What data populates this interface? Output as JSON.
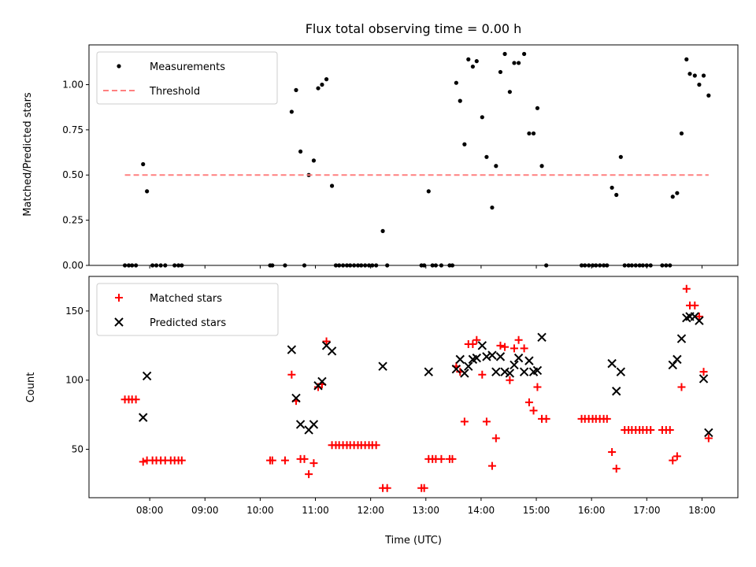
{
  "chart_data": [
    {
      "type": "scatter",
      "title": "Flux total observing time = 0.00 h",
      "xlabel": "",
      "ylabel": "Matched/Predicted stars",
      "xlim": [
        6.9,
        18.65
      ],
      "ylim": [
        0,
        1.22
      ],
      "yticks": [
        "0.00",
        "0.25",
        "0.50",
        "0.75",
        "1.00"
      ],
      "legend": "top-left",
      "series": [
        {
          "name": "Measurements",
          "marker": "dot",
          "color": "#000000",
          "points": [
            [
              7.55,
              0
            ],
            [
              7.62,
              0
            ],
            [
              7.68,
              0
            ],
            [
              7.75,
              0
            ],
            [
              7.88,
              0.56
            ],
            [
              7.95,
              0.41
            ],
            [
              8.05,
              0
            ],
            [
              8.12,
              0
            ],
            [
              8.2,
              0
            ],
            [
              8.28,
              0
            ],
            [
              8.45,
              0
            ],
            [
              8.52,
              0
            ],
            [
              8.58,
              0
            ],
            [
              10.18,
              0
            ],
            [
              10.22,
              0
            ],
            [
              10.45,
              0
            ],
            [
              10.57,
              0.85
            ],
            [
              10.65,
              0.97
            ],
            [
              10.73,
              0.63
            ],
            [
              10.8,
              0
            ],
            [
              10.88,
              0.5
            ],
            [
              10.97,
              0.58
            ],
            [
              11.05,
              0.98
            ],
            [
              11.12,
              1.0
            ],
            [
              11.2,
              1.03
            ],
            [
              11.3,
              0.44
            ],
            [
              11.37,
              0
            ],
            [
              11.43,
              0
            ],
            [
              11.5,
              0
            ],
            [
              11.57,
              0
            ],
            [
              11.63,
              0
            ],
            [
              11.7,
              0
            ],
            [
              11.77,
              0
            ],
            [
              11.83,
              0
            ],
            [
              11.9,
              0
            ],
            [
              11.97,
              0
            ],
            [
              12.03,
              0
            ],
            [
              12.1,
              0
            ],
            [
              12.22,
              0.19
            ],
            [
              12.3,
              0
            ],
            [
              12.92,
              0
            ],
            [
              12.97,
              0
            ],
            [
              13.05,
              0.41
            ],
            [
              13.12,
              0
            ],
            [
              13.18,
              0
            ],
            [
              13.28,
              0
            ],
            [
              13.43,
              0
            ],
            [
              13.48,
              0
            ],
            [
              13.55,
              1.01
            ],
            [
              13.62,
              0.91
            ],
            [
              13.7,
              0.67
            ],
            [
              13.77,
              1.14
            ],
            [
              13.85,
              1.1
            ],
            [
              13.92,
              1.13
            ],
            [
              14.02,
              0.82
            ],
            [
              14.1,
              0.6
            ],
            [
              14.2,
              0.32
            ],
            [
              14.27,
              0.55
            ],
            [
              14.35,
              1.07
            ],
            [
              14.43,
              1.17
            ],
            [
              14.52,
              0.96
            ],
            [
              14.6,
              1.12
            ],
            [
              14.68,
              1.12
            ],
            [
              14.78,
              1.17
            ],
            [
              14.87,
              0.73
            ],
            [
              14.95,
              0.73
            ],
            [
              15.02,
              0.87
            ],
            [
              15.1,
              0.55
            ],
            [
              15.18,
              0
            ],
            [
              15.82,
              0
            ],
            [
              15.88,
              0
            ],
            [
              15.95,
              0
            ],
            [
              16.02,
              0
            ],
            [
              16.08,
              0
            ],
            [
              16.15,
              0
            ],
            [
              16.22,
              0
            ],
            [
              16.28,
              0
            ],
            [
              16.37,
              0.43
            ],
            [
              16.45,
              0.39
            ],
            [
              16.53,
              0.6
            ],
            [
              16.6,
              0
            ],
            [
              16.67,
              0
            ],
            [
              16.73,
              0
            ],
            [
              16.8,
              0
            ],
            [
              16.87,
              0
            ],
            [
              16.93,
              0
            ],
            [
              17.0,
              0
            ],
            [
              17.07,
              0
            ],
            [
              17.28,
              0
            ],
            [
              17.35,
              0
            ],
            [
              17.42,
              0
            ],
            [
              17.47,
              0.38
            ],
            [
              17.55,
              0.4
            ],
            [
              17.63,
              0.73
            ],
            [
              17.72,
              1.14
            ],
            [
              17.78,
              1.06
            ],
            [
              17.87,
              1.05
            ],
            [
              17.95,
              1.0
            ],
            [
              18.03,
              1.05
            ],
            [
              18.12,
              0.94
            ]
          ]
        },
        {
          "name": "Threshold",
          "marker": "dashed-line",
          "color": "#ff8080",
          "points": [
            [
              7.55,
              0.5
            ],
            [
              18.12,
              0.5
            ]
          ]
        }
      ]
    },
    {
      "type": "scatter",
      "title": "",
      "xlabel": "Time (UTC)",
      "ylabel": "Count",
      "xlim": [
        6.9,
        18.65
      ],
      "ylim": [
        15,
        175
      ],
      "xticks": [
        "08:00",
        "09:00",
        "10:00",
        "11:00",
        "12:00",
        "13:00",
        "14:00",
        "15:00",
        "16:00",
        "17:00",
        "18:00"
      ],
      "yticks": [
        "50",
        "100",
        "150"
      ],
      "legend": "top-left",
      "series": [
        {
          "name": "Matched stars",
          "marker": "plus",
          "color": "#ff0000",
          "points": [
            [
              7.55,
              86
            ],
            [
              7.62,
              86
            ],
            [
              7.68,
              86
            ],
            [
              7.75,
              86
            ],
            [
              7.88,
              41
            ],
            [
              7.95,
              42
            ],
            [
              8.05,
              42
            ],
            [
              8.12,
              42
            ],
            [
              8.2,
              42
            ],
            [
              8.28,
              42
            ],
            [
              8.38,
              42
            ],
            [
              8.45,
              42
            ],
            [
              8.52,
              42
            ],
            [
              8.58,
              42
            ],
            [
              10.18,
              42
            ],
            [
              10.22,
              42
            ],
            [
              10.45,
              42
            ],
            [
              10.57,
              104
            ],
            [
              10.65,
              85
            ],
            [
              10.73,
              43
            ],
            [
              10.8,
              43
            ],
            [
              10.88,
              32
            ],
            [
              10.97,
              40
            ],
            [
              11.05,
              95
            ],
            [
              11.12,
              97
            ],
            [
              11.2,
              128
            ],
            [
              11.3,
              53
            ],
            [
              11.37,
              53
            ],
            [
              11.43,
              53
            ],
            [
              11.5,
              53
            ],
            [
              11.57,
              53
            ],
            [
              11.63,
              53
            ],
            [
              11.7,
              53
            ],
            [
              11.77,
              53
            ],
            [
              11.83,
              53
            ],
            [
              11.9,
              53
            ],
            [
              11.97,
              53
            ],
            [
              12.03,
              53
            ],
            [
              12.1,
              53
            ],
            [
              12.22,
              22
            ],
            [
              12.3,
              22
            ],
            [
              12.92,
              22
            ],
            [
              12.97,
              22
            ],
            [
              13.05,
              43
            ],
            [
              13.12,
              43
            ],
            [
              13.18,
              43
            ],
            [
              13.28,
              43
            ],
            [
              13.43,
              43
            ],
            [
              13.48,
              43
            ],
            [
              13.55,
              110
            ],
            [
              13.62,
              106
            ],
            [
              13.7,
              70
            ],
            [
              13.77,
              126
            ],
            [
              13.85,
              126
            ],
            [
              13.92,
              129
            ],
            [
              14.02,
              104
            ],
            [
              14.1,
              70
            ],
            [
              14.2,
              38
            ],
            [
              14.27,
              58
            ],
            [
              14.35,
              125
            ],
            [
              14.43,
              124
            ],
            [
              14.52,
              100
            ],
            [
              14.6,
              123
            ],
            [
              14.68,
              129
            ],
            [
              14.78,
              123
            ],
            [
              14.87,
              84
            ],
            [
              14.95,
              78
            ],
            [
              15.02,
              95
            ],
            [
              15.1,
              72
            ],
            [
              15.18,
              72
            ],
            [
              15.82,
              72
            ],
            [
              15.88,
              72
            ],
            [
              15.95,
              72
            ],
            [
              16.02,
              72
            ],
            [
              16.08,
              72
            ],
            [
              16.15,
              72
            ],
            [
              16.22,
              72
            ],
            [
              16.28,
              72
            ],
            [
              16.37,
              48
            ],
            [
              16.45,
              36
            ],
            [
              16.6,
              64
            ],
            [
              16.67,
              64
            ],
            [
              16.73,
              64
            ],
            [
              16.8,
              64
            ],
            [
              16.87,
              64
            ],
            [
              16.93,
              64
            ],
            [
              17.0,
              64
            ],
            [
              17.07,
              64
            ],
            [
              17.28,
              64
            ],
            [
              17.35,
              64
            ],
            [
              17.42,
              64
            ],
            [
              17.47,
              42
            ],
            [
              17.55,
              45
            ],
            [
              17.63,
              95
            ],
            [
              17.72,
              166
            ],
            [
              17.78,
              154
            ],
            [
              17.87,
              154
            ],
            [
              17.95,
              146
            ],
            [
              18.03,
              106
            ],
            [
              18.12,
              58
            ]
          ]
        },
        {
          "name": "Predicted stars",
          "marker": "x",
          "color": "#000000",
          "points": [
            [
              7.88,
              73
            ],
            [
              7.95,
              103
            ],
            [
              10.57,
              122
            ],
            [
              10.65,
              87
            ],
            [
              10.73,
              68
            ],
            [
              10.88,
              64
            ],
            [
              10.97,
              68
            ],
            [
              11.05,
              96
            ],
            [
              11.12,
              99
            ],
            [
              11.2,
              125
            ],
            [
              11.3,
              121
            ],
            [
              12.22,
              110
            ],
            [
              13.05,
              106
            ],
            [
              13.55,
              108
            ],
            [
              13.62,
              115
            ],
            [
              13.7,
              105
            ],
            [
              13.77,
              110
            ],
            [
              13.85,
              115
            ],
            [
              13.92,
              116
            ],
            [
              14.02,
              125
            ],
            [
              14.1,
              117
            ],
            [
              14.2,
              118
            ],
            [
              14.27,
              106
            ],
            [
              14.35,
              117
            ],
            [
              14.43,
              106
            ],
            [
              14.52,
              105
            ],
            [
              14.6,
              111
            ],
            [
              14.68,
              116
            ],
            [
              14.78,
              106
            ],
            [
              14.87,
              114
            ],
            [
              14.95,
              106
            ],
            [
              15.02,
              107
            ],
            [
              15.1,
              131
            ],
            [
              16.37,
              112
            ],
            [
              16.45,
              92
            ],
            [
              16.53,
              106
            ],
            [
              17.47,
              111
            ],
            [
              17.55,
              115
            ],
            [
              17.63,
              130
            ],
            [
              17.72,
              145
            ],
            [
              17.78,
              146
            ],
            [
              17.87,
              146
            ],
            [
              17.95,
              143
            ],
            [
              18.03,
              101
            ],
            [
              18.12,
              62
            ]
          ]
        }
      ]
    }
  ]
}
